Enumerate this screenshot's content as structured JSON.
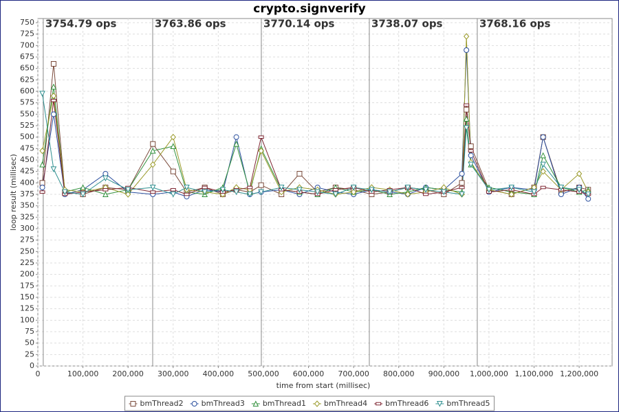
{
  "chart_data": {
    "type": "line",
    "title": "crypto.signverify",
    "x_label": "time from start (millisec)",
    "y_label": "loop result (millisec)",
    "xlim": [
      0,
      1273000
    ],
    "ylim": [
      0,
      759
    ],
    "xticks": [
      0,
      {
        "value": 100000,
        "label": "100,000"
      },
      {
        "value": 200000,
        "label": "200,000"
      },
      {
        "value": 300000,
        "label": "300,000"
      },
      {
        "value": 400000,
        "label": "400,000"
      },
      {
        "value": 500000,
        "label": "500,000"
      },
      {
        "value": 600000,
        "label": "600,000"
      },
      {
        "value": 700000,
        "label": "700,000"
      },
      {
        "value": 800000,
        "label": "800,000"
      },
      {
        "value": 900000,
        "label": "900,000"
      },
      {
        "value": 1000000,
        "label": "1,000,000"
      },
      {
        "value": 1100000,
        "label": "1,100,000"
      },
      {
        "value": 1200000,
        "label": "1,200,000"
      }
    ],
    "yticks": [
      0,
      25,
      50,
      75,
      100,
      125,
      150,
      175,
      200,
      225,
      250,
      275,
      300,
      325,
      350,
      375,
      400,
      425,
      450,
      475,
      500,
      525,
      550,
      575,
      600,
      625,
      650,
      675,
      700,
      725,
      750
    ],
    "grid": true,
    "intervals": [
      {
        "start": 12000,
        "label": "3754.79 ops"
      },
      {
        "start": 254600,
        "label": "3763.86 ops"
      },
      {
        "start": 495400,
        "label": "3770.14 ops"
      },
      {
        "start": 734800,
        "label": "3738.07 ops"
      },
      {
        "start": 974100,
        "label": "3768.16 ops"
      }
    ],
    "x": [
      10000,
      35000,
      60000,
      100000,
      150000,
      200000,
      255000,
      300000,
      330000,
      370000,
      410000,
      440000,
      470000,
      495000,
      540000,
      580000,
      620000,
      660000,
      700000,
      740000,
      780000,
      820000,
      860000,
      900000,
      940000,
      950000,
      960000,
      1000000,
      1050000,
      1100000,
      1120000,
      1160000,
      1200000,
      1220000
    ],
    "series": [
      {
        "name": "bmThread2",
        "color": "#7a4a3a",
        "marker": "square",
        "values": [
          400,
          660,
          380,
          375,
          390,
          385,
          485,
          425,
          380,
          390,
          375,
          385,
          380,
          395,
          375,
          420,
          380,
          390,
          385,
          375,
          380,
          390,
          385,
          375,
          400,
          560,
          480,
          385,
          375,
          390,
          500,
          380,
          390,
          385
        ]
      },
      {
        "name": "bmThread3",
        "color": "#2a4f9e",
        "marker": "circle",
        "values": [
          390,
          550,
          375,
          385,
          420,
          380,
          375,
          380,
          370,
          385,
          380,
          500,
          375,
          380,
          385,
          375,
          390,
          380,
          375,
          385,
          380,
          375,
          390,
          385,
          420,
          690,
          460,
          380,
          390,
          385,
          500,
          375,
          390,
          365
        ]
      },
      {
        "name": "bmThread1",
        "color": "#2f8f3a",
        "marker": "triangle",
        "values": [
          440,
          610,
          380,
          390,
          375,
          385,
          470,
          480,
          380,
          375,
          390,
          485,
          380,
          475,
          385,
          380,
          375,
          390,
          380,
          385,
          375,
          380,
          390,
          385,
          380,
          540,
          440,
          390,
          380,
          375,
          460,
          390,
          380,
          385
        ]
      },
      {
        "name": "bmThread4",
        "color": "#9a9a2a",
        "marker": "diamond",
        "values": [
          470,
          590,
          385,
          380,
          390,
          375,
          440,
          500,
          385,
          380,
          375,
          390,
          385,
          470,
          380,
          390,
          385,
          375,
          380,
          390,
          385,
          375,
          380,
          390,
          375,
          720,
          445,
          385,
          375,
          390,
          425,
          385,
          420,
          380
        ]
      },
      {
        "name": "bmThread6",
        "color": "#7d2430",
        "marker": "bar",
        "values": [
          380,
          580,
          375,
          380,
          385,
          390,
          380,
          385,
          375,
          390,
          380,
          385,
          390,
          500,
          385,
          380,
          375,
          385,
          390,
          380,
          385,
          390,
          375,
          380,
          390,
          570,
          470,
          380,
          385,
          375,
          390,
          385,
          380,
          375
        ]
      },
      {
        "name": "bmThread5",
        "color": "#2e8f8f",
        "marker": "down",
        "values": [
          595,
          430,
          380,
          375,
          410,
          385,
          390,
          375,
          390,
          380,
          385,
          380,
          375,
          380,
          390,
          385,
          380,
          375,
          390,
          385,
          380,
          390,
          385,
          380,
          375,
          520,
          440,
          385,
          390,
          380,
          440,
          390,
          385,
          375
        ]
      }
    ]
  }
}
